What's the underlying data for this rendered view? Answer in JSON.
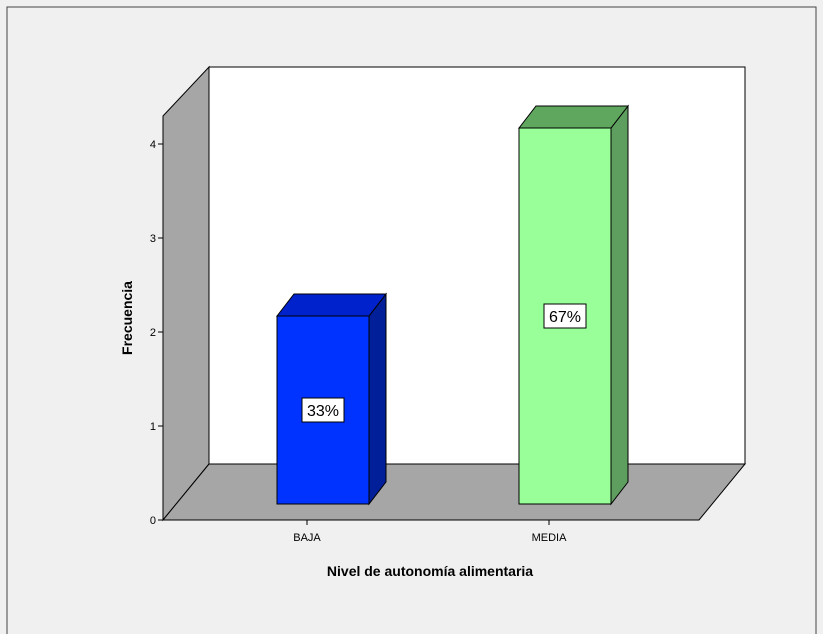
{
  "chart_data": {
    "type": "bar",
    "categories": [
      "BAJA",
      "MEDIA"
    ],
    "values": [
      2,
      4
    ],
    "data_labels": [
      "33%",
      "67%"
    ],
    "xlabel": "Nivel de autonomía alimentaria",
    "ylabel": "Frecuencia",
    "ylim": [
      0,
      4
    ],
    "yticks": [
      "0",
      "1",
      "2",
      "3",
      "4"
    ],
    "bar_colors": [
      {
        "face": "#0033ff",
        "top": "#0022cc",
        "side": "#001f99"
      },
      {
        "face": "#99ff99",
        "top": "#5fa65f",
        "side": "#5e9e5e"
      }
    ],
    "grid": false,
    "legend": "none",
    "style": "3d"
  }
}
